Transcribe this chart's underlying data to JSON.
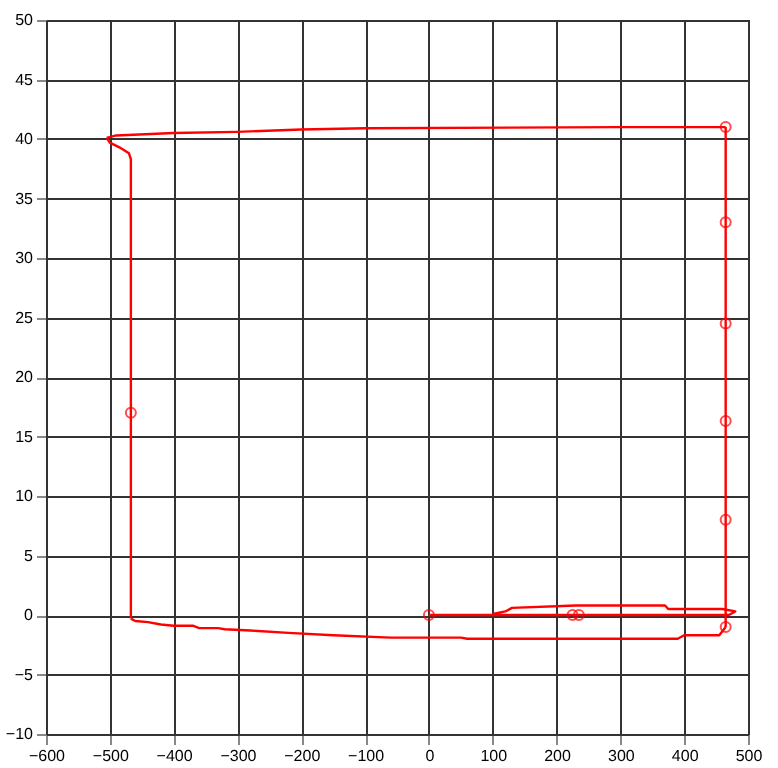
{
  "chart_data": {
    "type": "line",
    "xlim": [
      -600,
      500
    ],
    "ylim": [
      -10,
      50
    ],
    "xticks": [
      -600,
      -500,
      -400,
      -300,
      -200,
      -100,
      0,
      100,
      200,
      300,
      400,
      500
    ],
    "yticks": [
      -10,
      -5,
      0,
      5,
      10,
      15,
      20,
      25,
      30,
      35,
      40,
      45,
      50
    ],
    "grid": true,
    "marker": "none",
    "line_style": "solid",
    "series": [
      {
        "color": "#ff0000",
        "x": [
          -505,
          -500,
          -485,
          -470,
          -467,
          -467
        ],
        "values": [
          40.1,
          39.7,
          39.3,
          38.8,
          38.3,
          -0.3
        ]
      },
      {
        "color": "#ff0000",
        "x": [
          -467,
          -460,
          -440,
          -420,
          -400,
          -370,
          -360,
          -330,
          -320,
          -280,
          -220,
          -150,
          -60,
          50,
          60,
          390,
          400,
          455,
          465
        ],
        "values": [
          -0.3,
          -0.5,
          -0.6,
          -0.8,
          -0.9,
          -0.9,
          -1.1,
          -1.1,
          -1.2,
          -1.3,
          -1.5,
          -1.7,
          -1.9,
          -1.9,
          -2.0,
          -2.0,
          -1.7,
          -1.7,
          -1.0
        ]
      },
      {
        "color": "#ff0000",
        "x": [
          465,
          465
        ],
        "values": [
          -1.0,
          41
        ]
      },
      {
        "color": "#ff0000",
        "x": [
          -505,
          -490,
          -400,
          -300,
          -200,
          -100,
          300,
          465
        ],
        "values": [
          40.1,
          40.3,
          40.5,
          40.6,
          40.8,
          40.9,
          41,
          41
        ]
      },
      {
        "color": "#ff0000",
        "x": [
          0,
          100,
          350,
          470,
          480,
          460,
          375,
          370,
          230,
          130,
          120,
          100
        ],
        "values": [
          0,
          0,
          0,
          0,
          0.3,
          0.5,
          0.5,
          0.8,
          0.8,
          0.6,
          0.3,
          0.1
        ]
      },
      {
        "type": "scatter",
        "color": "#ff0000",
        "marker": "circle",
        "x": [
          465,
          465,
          465,
          465,
          465,
          465,
          -467,
          0,
          225,
          235
        ],
        "values": [
          41,
          33,
          24.5,
          16.3,
          8,
          -1,
          17,
          0,
          0,
          0
        ]
      }
    ]
  }
}
